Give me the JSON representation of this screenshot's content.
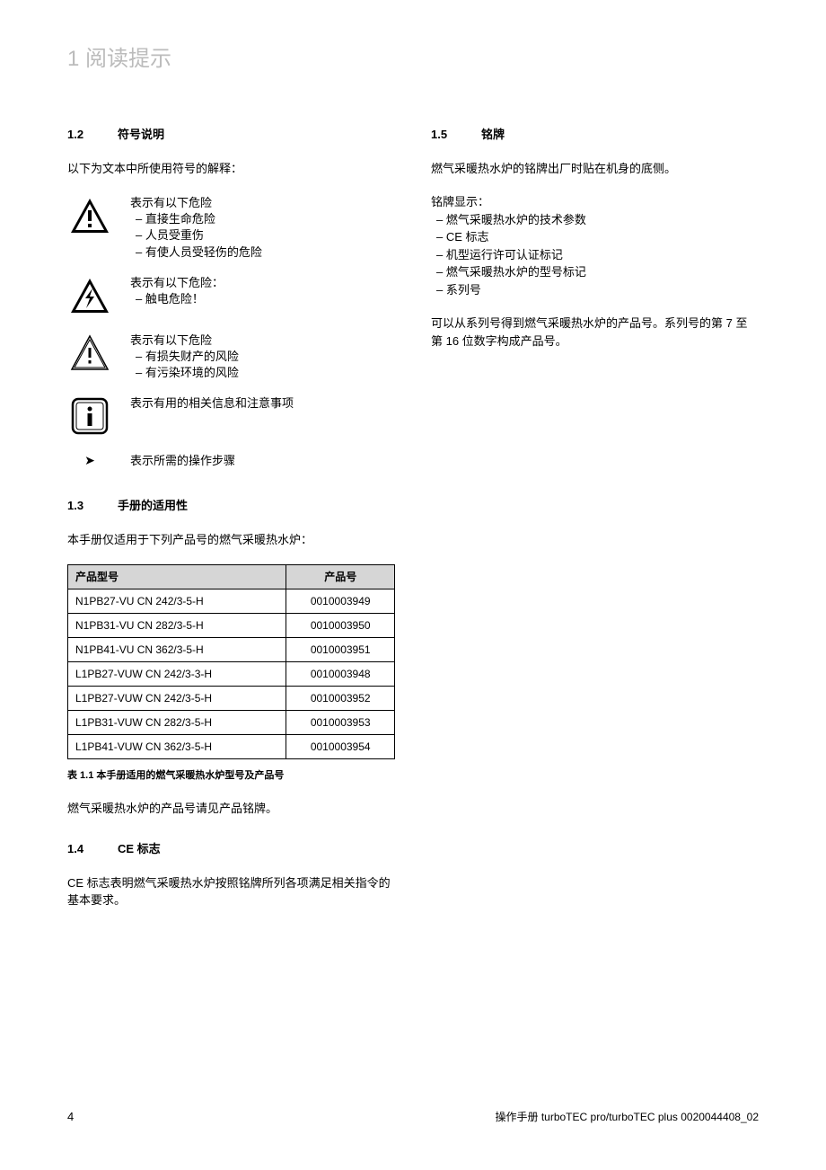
{
  "page_header": "1 阅读提示",
  "left": {
    "s12": {
      "num": "1.2",
      "title": "符号说明",
      "intro": "以下为文本中所使用符号的解释："
    },
    "symbols": [
      {
        "head": "表示有以下危险",
        "items": [
          "– 直接生命危险",
          "– 人员受重伤",
          "– 有使人员受轻伤的危险"
        ]
      },
      {
        "head": "表示有以下危险：",
        "items": [
          "– 触电危险！"
        ]
      },
      {
        "head": "表示有以下危险",
        "items": [
          "– 有损失财产的风险",
          "– 有污染环境的风险"
        ]
      },
      {
        "head": "表示有用的相关信息和注意事项",
        "items": []
      }
    ],
    "arrow": {
      "glyph": "➤",
      "text": "表示所需的操作步骤"
    },
    "s13": {
      "num": "1.3",
      "title": "手册的适用性",
      "intro": "本手册仅适用于下列产品号的燃气采暖热水炉："
    },
    "table": {
      "headers": [
        "产品型号",
        "产品号"
      ],
      "rows": [
        [
          "N1PB27-VU CN 242/3-5-H",
          "0010003949"
        ],
        [
          "N1PB31-VU CN 282/3-5-H",
          "0010003950"
        ],
        [
          "N1PB41-VU CN 362/3-5-H",
          "0010003951"
        ],
        [
          "L1PB27-VUW CN 242/3-3-H",
          "0010003948"
        ],
        [
          "L1PB27-VUW CN 242/3-5-H",
          "0010003952"
        ],
        [
          "L1PB31-VUW CN 282/3-5-H",
          "0010003953"
        ],
        [
          "L1PB41-VUW CN 362/3-5-H",
          "0010003954"
        ]
      ],
      "caption": "表 1.1 本手册适用的燃气采暖热水炉型号及产品号"
    },
    "s13_note": "燃气采暖热水炉的产品号请见产品铭牌。",
    "s14": {
      "num": "1.4",
      "title": "CE 标志",
      "body": "CE 标志表明燃气采暖热水炉按照铭牌所列各项满足相关指令的基本要求。"
    }
  },
  "right": {
    "s15": {
      "num": "1.5",
      "title": "铭牌",
      "intro": "燃气采暖热水炉的铭牌出厂时贴在机身的底侧。"
    },
    "list_head": "铭牌显示：",
    "list_items": [
      "– 燃气采暖热水炉的技术参数",
      "– CE 标志",
      "– 机型运行许可认证标记",
      "– 燃气采暖热水炉的型号标记",
      "– 系列号"
    ],
    "note": "可以从系列号得到燃气采暖热水炉的产品号。系列号的第 7 至第 16 位数字构成产品号。"
  },
  "footer": {
    "page": "4",
    "doc": "操作手册 turboTEC pro/turboTEC plus 0020044408_02"
  }
}
